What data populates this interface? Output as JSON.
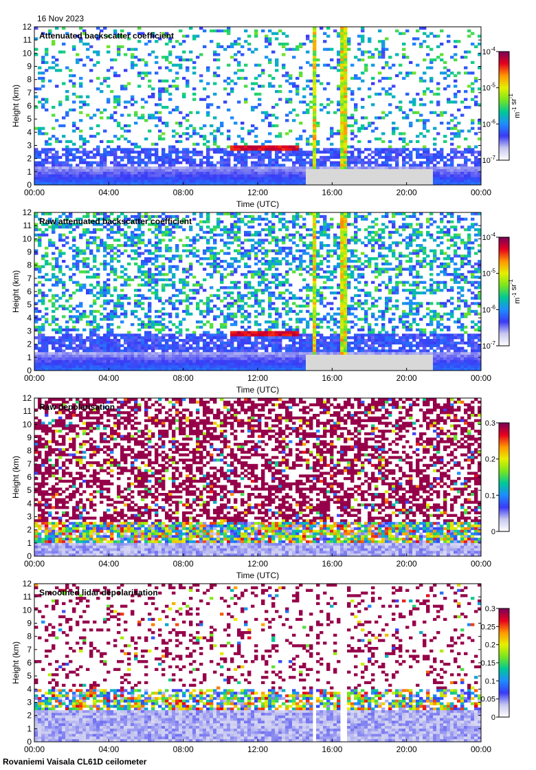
{
  "header": {
    "date": "16 Nov 2023"
  },
  "footer": {
    "site_instrument": "Rovaniemi Vaisala CL61D ceilometer"
  },
  "colors": {
    "colormap": [
      "#ffffff",
      "#c8c8f0",
      "#3a3af5",
      "#1e8cff",
      "#00c896",
      "#78e61e",
      "#e6f000",
      "#ff9600",
      "#e6001e",
      "#78005a"
    ],
    "ground_grey": "#d8d8d8"
  },
  "chart_data": [
    {
      "type": "heatmap",
      "title": "Attenuated backscatter coefficient",
      "xlabel": "Time (UTC)",
      "ylabel": "Height (km)",
      "xticks": [
        "00:00",
        "04:00",
        "08:00",
        "12:00",
        "16:00",
        "20:00",
        "00:00"
      ],
      "xlim_hours": [
        0,
        24
      ],
      "yticks": [
        0,
        1,
        2,
        3,
        4,
        5,
        6,
        7,
        8,
        9,
        10,
        11,
        12
      ],
      "ylim": [
        0,
        12
      ],
      "colorbar": {
        "scale": "log",
        "min": 1e-07,
        "max": 0.0001,
        "tick_labels": [
          "10^-7",
          "10^-6",
          "10^-5",
          "10^-4"
        ],
        "unit_label": "m^-1 sr^-1"
      },
      "features": {
        "boundary_layer_top_km": 1.3,
        "cloud_layer": {
          "start_h": 10.5,
          "end_h": 14.2,
          "height_km": 2.8
        },
        "precip_columns_h": [
          15.0,
          16.6
        ],
        "noise_level": 0.35
      }
    },
    {
      "type": "heatmap",
      "title": "Raw attenuated backscatter coefficient",
      "xlabel": "Time (UTC)",
      "ylabel": "Height (km)",
      "xticks": [
        "00:00",
        "04:00",
        "08:00",
        "12:00",
        "16:00",
        "20:00",
        "00:00"
      ],
      "xlim_hours": [
        0,
        24
      ],
      "yticks": [
        0,
        1,
        2,
        3,
        4,
        5,
        6,
        7,
        8,
        9,
        10,
        11,
        12
      ],
      "ylim": [
        0,
        12
      ],
      "colorbar": {
        "scale": "log",
        "min": 1e-07,
        "max": 0.0001,
        "tick_labels": [
          "10^-7",
          "10^-6",
          "10^-5",
          "10^-4"
        ],
        "unit_label": "m^-1 sr^-1"
      },
      "features": {
        "boundary_layer_top_km": 1.3,
        "cloud_layer": {
          "start_h": 10.5,
          "end_h": 14.2,
          "height_km": 2.8
        },
        "precip_columns_h": [
          15.0,
          16.6
        ],
        "noise_level": 0.75
      }
    },
    {
      "type": "heatmap",
      "title": "Raw depolarisation",
      "xlabel": "Time (UTC)",
      "ylabel": "Height (km)",
      "xticks": [
        "00:00",
        "04:00",
        "08:00",
        "12:00",
        "16:00",
        "20:00",
        "00:00"
      ],
      "xlim_hours": [
        0,
        24
      ],
      "yticks": [
        0,
        1,
        2,
        3,
        4,
        5,
        6,
        7,
        8,
        9,
        10,
        11,
        12
      ],
      "ylim": [
        0,
        12
      ],
      "colorbar": {
        "scale": "linear",
        "min": 0,
        "max": 0.3,
        "tick_labels": [
          "0",
          "0.1",
          "0.2",
          "0.3"
        ]
      },
      "features": {
        "boundary_layer_top_km": 1.0,
        "noise_level": 0.95
      }
    },
    {
      "type": "heatmap",
      "title": "Smoothed lidar depolarisation",
      "xlabel": "Time (UTC)",
      "ylabel": "Height (km)",
      "xticks": [
        "00:00",
        "04:00",
        "08:00",
        "12:00",
        "16:00",
        "20:00",
        "00:00"
      ],
      "xlim_hours": [
        0,
        24
      ],
      "yticks": [
        0,
        1,
        2,
        3,
        4,
        5,
        6,
        7,
        8,
        9,
        10,
        11,
        12
      ],
      "ylim": [
        0,
        12
      ],
      "colorbar": {
        "scale": "linear",
        "min": 0,
        "max": 0.3,
        "tick_labels": [
          "0",
          "0.05",
          "0.1",
          "0.15",
          "0.2",
          "0.25",
          "0.3"
        ]
      },
      "features": {
        "boundary_layer_top_km": 2.5,
        "precip_columns_h": [
          15.0,
          16.6
        ],
        "noise_level": 0.3
      }
    }
  ]
}
